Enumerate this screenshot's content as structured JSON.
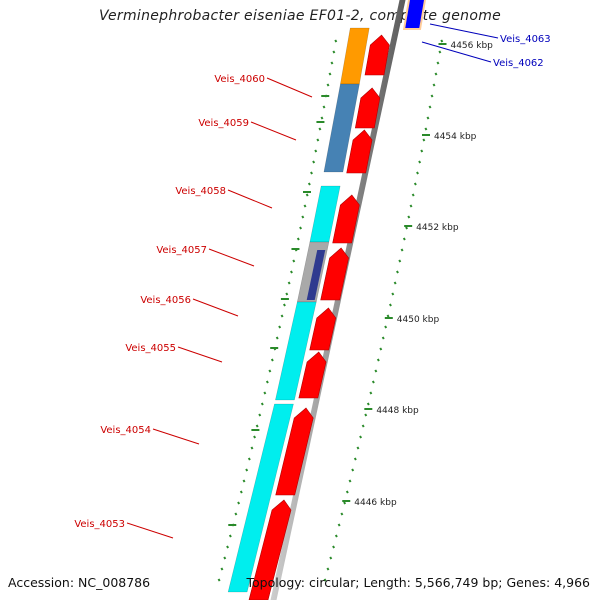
{
  "title": "Verminephrobacter eiseniae EF01-2, complete genome",
  "footer": {
    "accession_label": "Accession:",
    "accession": "NC_008786",
    "topology_label": "Topology:",
    "topology": "circular;",
    "length_label": "Length:",
    "length": "5,566,749 bp;",
    "genes_label": "Genes:",
    "genes": "4,966"
  },
  "colors": {
    "backbone": "#888888",
    "forward_cds": "#ff0000",
    "left_label": "#cc0000",
    "right_label": "#0000bb",
    "tick": "#2a8a2a",
    "cyan_feature": "#00eeee",
    "steelblue_feature": "#4682b4",
    "orange_feature": "#ff9a00",
    "blue_feature": "#0000ff",
    "peach_feature": "#ffcc99",
    "gray_feature": "#a9a9a9",
    "slate_feature": "#2f3a8f"
  },
  "scale_labels": [
    "4446 kbp",
    "4448 kbp",
    "4450 kbp",
    "4452 kbp",
    "4454 kbp",
    "4456 kbp"
  ],
  "left_gene_labels": [
    "Veis_4060",
    "Veis_4059",
    "Veis_4058",
    "Veis_4057",
    "Veis_4056",
    "Veis_4055",
    "Veis_4054",
    "Veis_4053"
  ],
  "right_gene_labels": [
    "Veis_4063",
    "Veis_4062"
  ]
}
